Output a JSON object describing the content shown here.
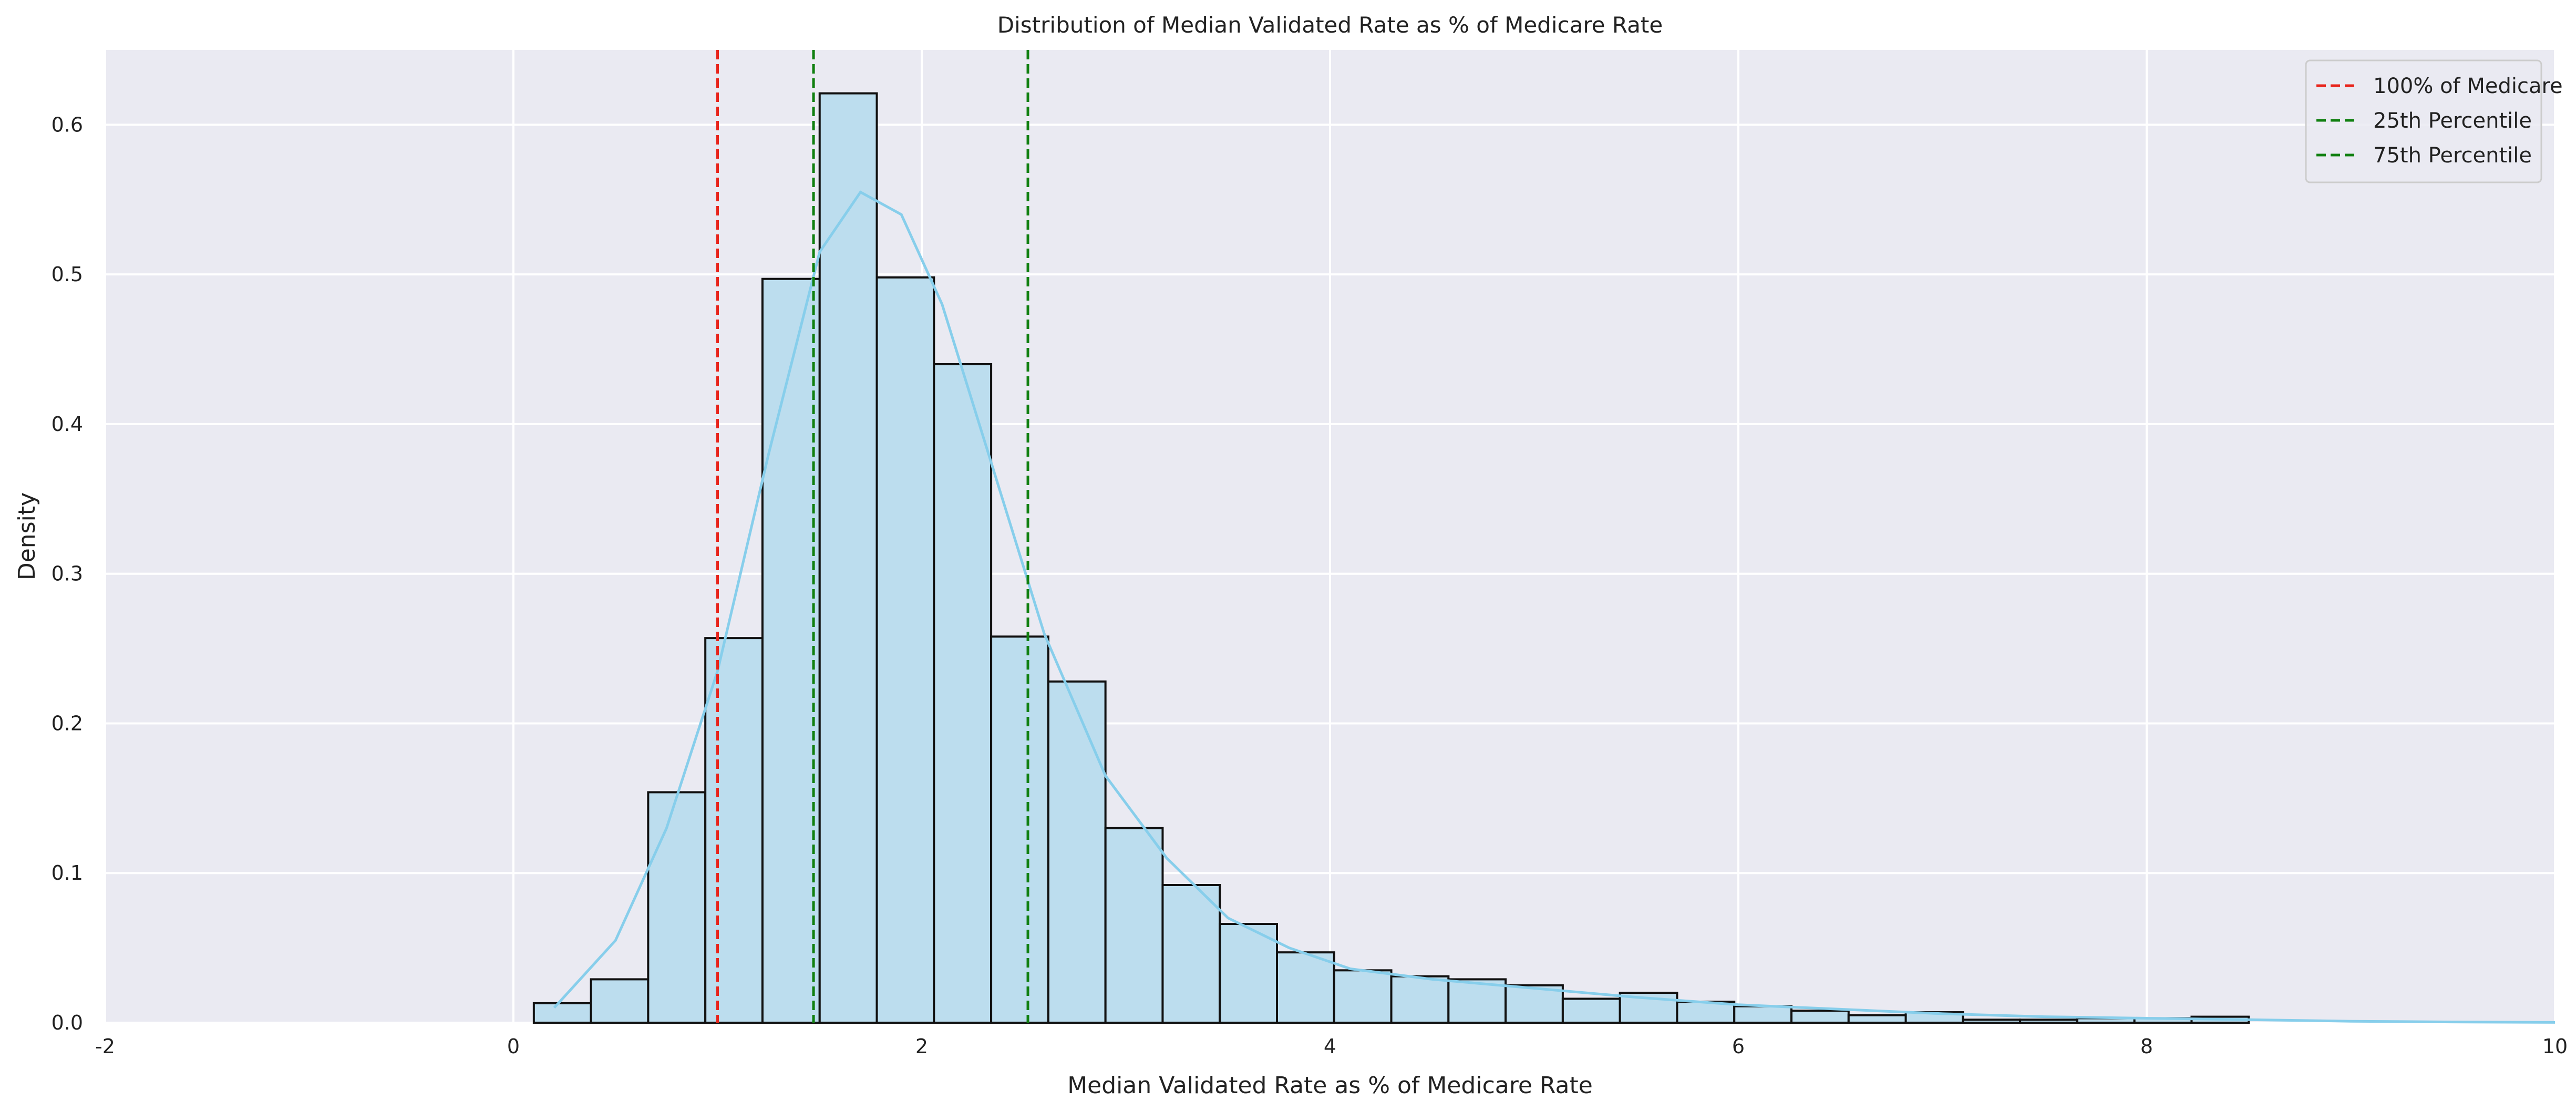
{
  "chart_data": {
    "type": "histogram",
    "title": "Distribution of Median Validated Rate as % of Medicare Rate",
    "xlabel": "Median Validated Rate as % of Medicare Rate",
    "ylabel": "Density",
    "xlim": [
      -2,
      10
    ],
    "ylim": [
      0,
      0.65
    ],
    "xticks": [
      -2,
      0,
      2,
      4,
      6,
      8,
      10
    ],
    "yticks": [
      0.0,
      0.1,
      0.2,
      0.3,
      0.4,
      0.5,
      0.6
    ],
    "grid": true,
    "legend_position": "top-right",
    "bin_edges": [
      0.1,
      0.38,
      0.66,
      0.94,
      1.22,
      1.5,
      1.78,
      2.06,
      2.34,
      2.62,
      2.9,
      3.18,
      3.46,
      3.74,
      4.02,
      4.3,
      4.58,
      4.86,
      5.14,
      5.42,
      5.7,
      5.98,
      6.26,
      6.54,
      6.82,
      7.1,
      7.38,
      7.66,
      7.94,
      8.22,
      8.5
    ],
    "density": [
      0.013,
      0.029,
      0.154,
      0.257,
      0.497,
      0.621,
      0.498,
      0.44,
      0.258,
      0.228,
      0.13,
      0.092,
      0.066,
      0.047,
      0.035,
      0.031,
      0.029,
      0.025,
      0.016,
      0.02,
      0.014,
      0.011,
      0.008,
      0.005,
      0.007,
      0.002,
      0.002,
      0.003,
      0.003,
      0.004
    ],
    "kde": {
      "x": [
        0.2,
        0.5,
        0.75,
        1.0,
        1.25,
        1.5,
        1.7,
        1.9,
        2.1,
        2.35,
        2.6,
        2.9,
        3.2,
        3.5,
        3.8,
        4.1,
        4.5,
        5.0,
        5.5,
        6.0,
        6.5,
        7.0,
        7.5,
        8.0,
        8.5,
        9.0,
        9.5,
        10.0
      ],
      "y": [
        0.01,
        0.055,
        0.13,
        0.235,
        0.38,
        0.515,
        0.555,
        0.54,
        0.48,
        0.37,
        0.26,
        0.165,
        0.11,
        0.07,
        0.05,
        0.036,
        0.029,
        0.023,
        0.017,
        0.012,
        0.009,
        0.006,
        0.004,
        0.003,
        0.002,
        0.001,
        0.0005,
        0.0002
      ]
    },
    "reference_lines": [
      {
        "name": "100% of Medicare",
        "x": 1.0,
        "color": "#e8251c"
      },
      {
        "name": "25th Percentile",
        "x": 1.47,
        "color": "#118011"
      },
      {
        "name": "75th Percentile",
        "x": 2.52,
        "color": "#118011"
      }
    ],
    "colors": {
      "bar_fill": "#bcddee",
      "bar_edge": "#111111",
      "kde_line": "#87ceeb",
      "background": "#eaeaf2",
      "grid": "#ffffff"
    }
  }
}
